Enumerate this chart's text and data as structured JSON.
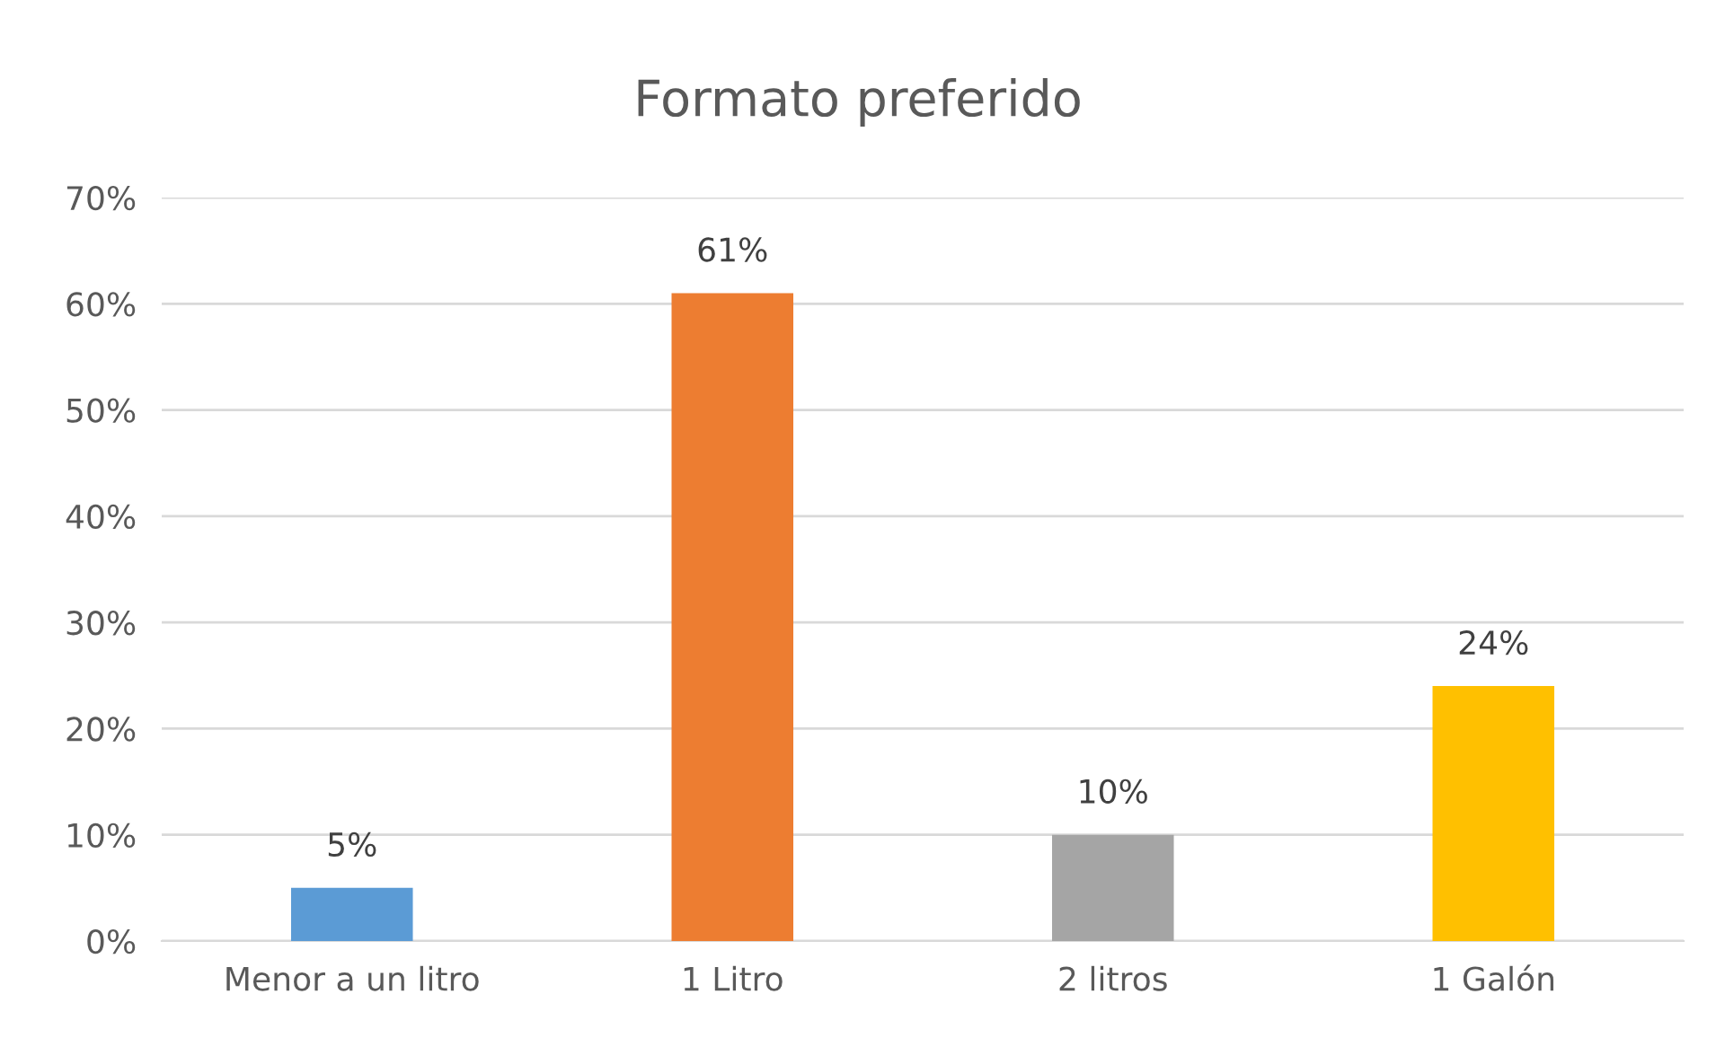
{
  "chart_data": {
    "type": "bar",
    "title": "Formato preferido",
    "categories": [
      "Menor a un litro",
      "1 Litro",
      "2 litros",
      "1 Galón"
    ],
    "values": [
      5,
      61,
      10,
      24
    ],
    "colors": [
      "#5b9bd5",
      "#ed7d31",
      "#a5a5a5",
      "#ffc000"
    ],
    "value_labels": [
      "5%",
      "61%",
      "10%",
      "24%"
    ],
    "ylim": [
      0,
      70
    ],
    "yticks": [
      {
        "value": 0,
        "label": "0%"
      },
      {
        "value": 10,
        "label": "10%"
      },
      {
        "value": 20,
        "label": "20%"
      },
      {
        "value": 30,
        "label": "30%"
      },
      {
        "value": 40,
        "label": "40%"
      },
      {
        "value": 50,
        "label": "50%"
      },
      {
        "value": 60,
        "label": "60%"
      },
      {
        "value": 70,
        "label": "70%"
      }
    ],
    "grid": "y",
    "legend": false
  }
}
